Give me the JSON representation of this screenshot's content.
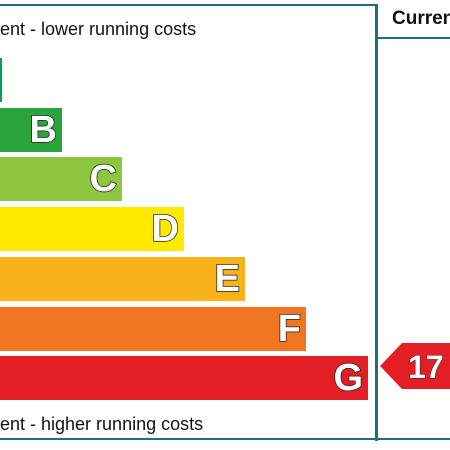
{
  "captions": {
    "top": "ent - lower running costs",
    "bottom": "ent - higher running costs"
  },
  "column_header": "Curren",
  "bands": [
    {
      "letter": "",
      "color": "#00a651"
    },
    {
      "letter": "B",
      "color": "#2aa43c"
    },
    {
      "letter": "C",
      "color": "#8dc63f"
    },
    {
      "letter": "D",
      "color": "#ffea00"
    },
    {
      "letter": "E",
      "color": "#f7b21a"
    },
    {
      "letter": "F",
      "color": "#f07624"
    },
    {
      "letter": "G",
      "color": "#e31e24"
    }
  ],
  "current_rating": {
    "value": "17",
    "band": "G",
    "color": "#e31e24"
  },
  "colors": {
    "frame": "#1f6f82"
  }
}
